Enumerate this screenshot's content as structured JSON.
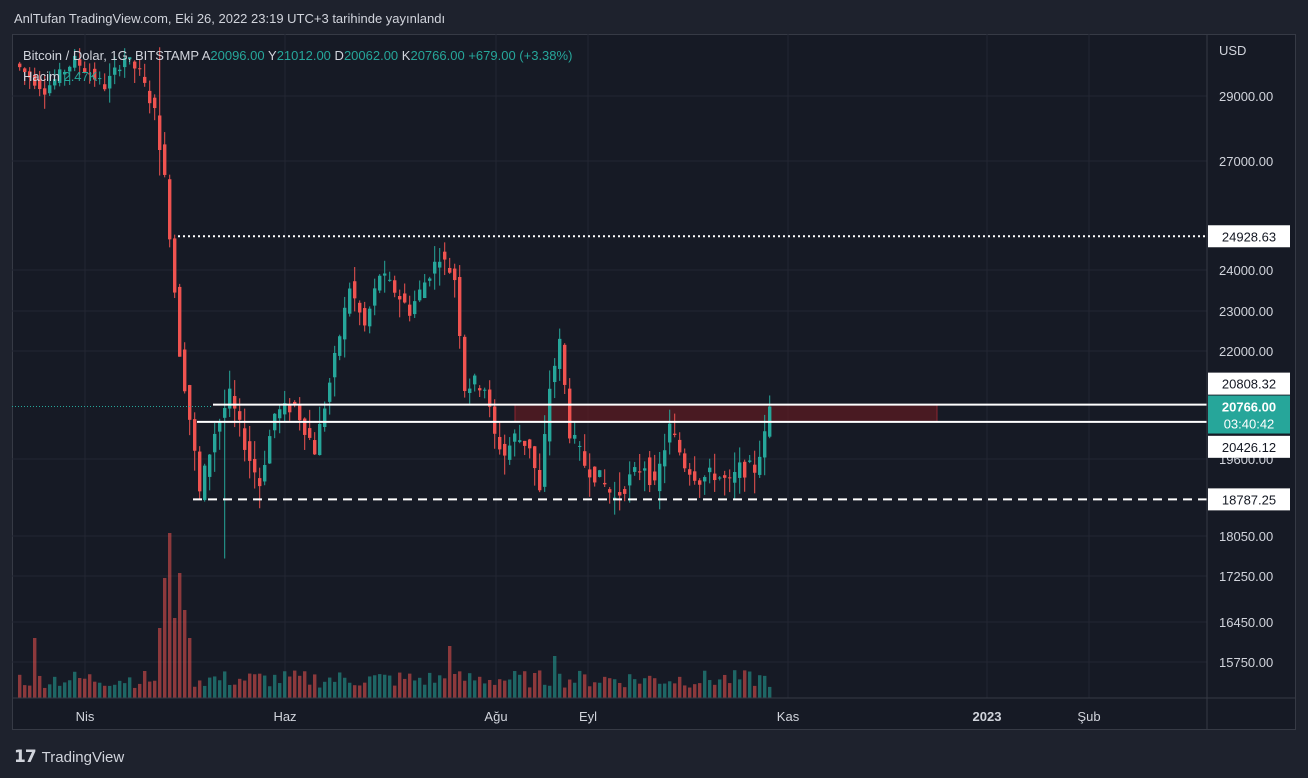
{
  "header": {
    "publisher": "AnlTufan TradingView.com, Eki 26, 2022 23:19 UTC+3 tarihinde yayınlandı"
  },
  "legend": {
    "symbol": "Bitcoin / Dolar, 1G, BITSTAMP",
    "open_label": "A",
    "open_value": "20096.00",
    "high_label": "Y",
    "high_value": "21012.00",
    "low_label": "D",
    "low_value": "20062.00",
    "close_label": "K",
    "close_value": "20766.00",
    "change": "+679.00 (+3.38%)",
    "volume_label": "Hacim",
    "volume_value": "2.47K"
  },
  "footer": {
    "brand": "TradingView",
    "logo": "𝟭𝟳"
  },
  "colors": {
    "up": "#26a69a",
    "down": "#ef5350",
    "background": "#161a25",
    "zone": "#5b1a22"
  },
  "chart_data": {
    "type": "candlestick",
    "currency": "USD",
    "y_ticks": [
      "29000.00",
      "27000.00",
      "24000.00",
      "23000.00",
      "22000.00",
      "19600.00",
      "18050.00",
      "17250.00",
      "16450.00",
      "15750.00"
    ],
    "y_tick_values": [
      29000,
      27000,
      24000,
      23000,
      22000,
      19600,
      18050,
      17250,
      16450,
      15750
    ],
    "x_ticks": [
      "Nis",
      "Haz",
      "Ağu",
      "Eyl",
      "Kas",
      "2023",
      "Şub"
    ],
    "price_tags": [
      {
        "label": "24928.63",
        "kind": "level"
      },
      {
        "label": "20808.32",
        "kind": "level"
      },
      {
        "label": "20766.00",
        "sub": "03:40:42",
        "kind": "last"
      },
      {
        "label": "20426.12",
        "kind": "level"
      },
      {
        "label": "18787.25",
        "kind": "level"
      }
    ],
    "levels": [
      {
        "price": 24928.63,
        "style": "dotted"
      },
      {
        "price": 20808.32,
        "style": "solid"
      },
      {
        "price": 20426.12,
        "style": "solid"
      },
      {
        "price": 18787.25,
        "style": "dashed"
      }
    ],
    "zone": {
      "top": 20808.32,
      "bottom": 20426.12
    },
    "last_price": 20766.0,
    "anchors": [
      {
        "i": 0,
        "p": 30000
      },
      {
        "i": 6,
        "p": 29200
      },
      {
        "i": 12,
        "p": 30100
      },
      {
        "i": 18,
        "p": 29300
      },
      {
        "i": 22,
        "p": 30200
      },
      {
        "i": 25,
        "p": 29700
      },
      {
        "i": 28,
        "p": 28500
      },
      {
        "i": 30,
        "p": 26500
      },
      {
        "i": 33,
        "p": 22000
      },
      {
        "i": 35,
        "p": 20500
      },
      {
        "i": 37,
        "p": 18900
      },
      {
        "i": 40,
        "p": 20200
      },
      {
        "i": 43,
        "p": 21000
      },
      {
        "i": 47,
        "p": 19600
      },
      {
        "i": 49,
        "p": 19100
      },
      {
        "i": 52,
        "p": 20600
      },
      {
        "i": 56,
        "p": 20800
      },
      {
        "i": 60,
        "p": 19800
      },
      {
        "i": 64,
        "p": 21800
      },
      {
        "i": 67,
        "p": 23600
      },
      {
        "i": 70,
        "p": 22600
      },
      {
        "i": 73,
        "p": 23900
      },
      {
        "i": 76,
        "p": 23500
      },
      {
        "i": 79,
        "p": 23000
      },
      {
        "i": 82,
        "p": 23700
      },
      {
        "i": 85,
        "p": 24400
      },
      {
        "i": 88,
        "p": 23800
      },
      {
        "i": 90,
        "p": 21200
      },
      {
        "i": 92,
        "p": 21300
      },
      {
        "i": 94,
        "p": 21200
      },
      {
        "i": 96,
        "p": 20100
      },
      {
        "i": 98,
        "p": 19700
      },
      {
        "i": 100,
        "p": 20100
      },
      {
        "i": 103,
        "p": 19900
      },
      {
        "i": 105,
        "p": 18900
      },
      {
        "i": 107,
        "p": 21200
      },
      {
        "i": 109,
        "p": 22200
      },
      {
        "i": 111,
        "p": 20200
      },
      {
        "i": 114,
        "p": 19500
      },
      {
        "i": 117,
        "p": 19200
      },
      {
        "i": 120,
        "p": 18800
      },
      {
        "i": 123,
        "p": 19200
      },
      {
        "i": 126,
        "p": 19500
      },
      {
        "i": 128,
        "p": 19000
      },
      {
        "i": 131,
        "p": 20300
      },
      {
        "i": 134,
        "p": 19500
      },
      {
        "i": 137,
        "p": 19200
      },
      {
        "i": 140,
        "p": 19300
      },
      {
        "i": 143,
        "p": 19100
      },
      {
        "i": 145,
        "p": 19400
      },
      {
        "i": 148,
        "p": 19400
      },
      {
        "i": 150,
        "p": 20096
      }
    ],
    "last_candle": {
      "o": 20096,
      "h": 21012,
      "l": 20062,
      "c": 20766
    }
  }
}
